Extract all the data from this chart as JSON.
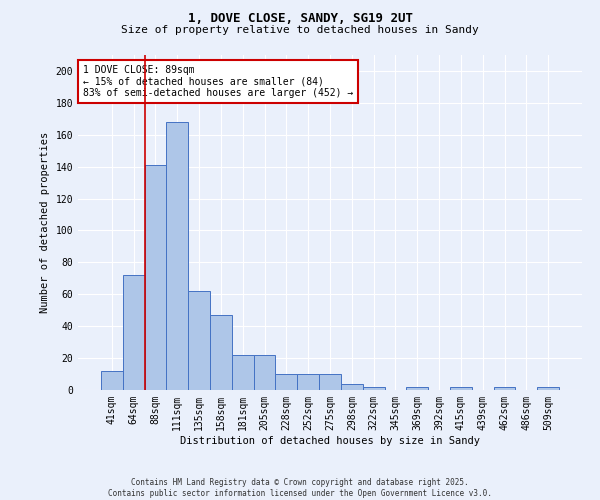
{
  "title1": "1, DOVE CLOSE, SANDY, SG19 2UT",
  "title2": "Size of property relative to detached houses in Sandy",
  "xlabel": "Distribution of detached houses by size in Sandy",
  "ylabel": "Number of detached properties",
  "categories": [
    "41sqm",
    "64sqm",
    "88sqm",
    "111sqm",
    "135sqm",
    "158sqm",
    "181sqm",
    "205sqm",
    "228sqm",
    "252sqm",
    "275sqm",
    "298sqm",
    "322sqm",
    "345sqm",
    "369sqm",
    "392sqm",
    "415sqm",
    "439sqm",
    "462sqm",
    "486sqm",
    "509sqm"
  ],
  "values": [
    12,
    72,
    141,
    168,
    62,
    47,
    22,
    22,
    10,
    10,
    10,
    4,
    2,
    0,
    2,
    0,
    2,
    0,
    2,
    0,
    2
  ],
  "bar_color": "#aec6e8",
  "bar_edge_color": "#4472c4",
  "background_color": "#eaf0fb",
  "annotation_title": "1 DOVE CLOSE: 89sqm",
  "annotation_line1": "← 15% of detached houses are smaller (84)",
  "annotation_line2": "83% of semi-detached houses are larger (452) →",
  "redline_x": 2.0,
  "annotation_box_facecolor": "#ffffff",
  "annotation_box_edgecolor": "#cc0000",
  "footer1": "Contains HM Land Registry data © Crown copyright and database right 2025.",
  "footer2": "Contains public sector information licensed under the Open Government Licence v3.0.",
  "ylim": [
    0,
    210
  ],
  "yticks": [
    0,
    20,
    40,
    60,
    80,
    100,
    120,
    140,
    160,
    180,
    200
  ],
  "grid_color": "#ffffff",
  "redline_color": "#cc0000",
  "title1_fontsize": 9,
  "title2_fontsize": 8,
  "xlabel_fontsize": 7.5,
  "ylabel_fontsize": 7.5,
  "tick_fontsize": 7,
  "footer_fontsize": 5.5,
  "ann_fontsize": 7
}
